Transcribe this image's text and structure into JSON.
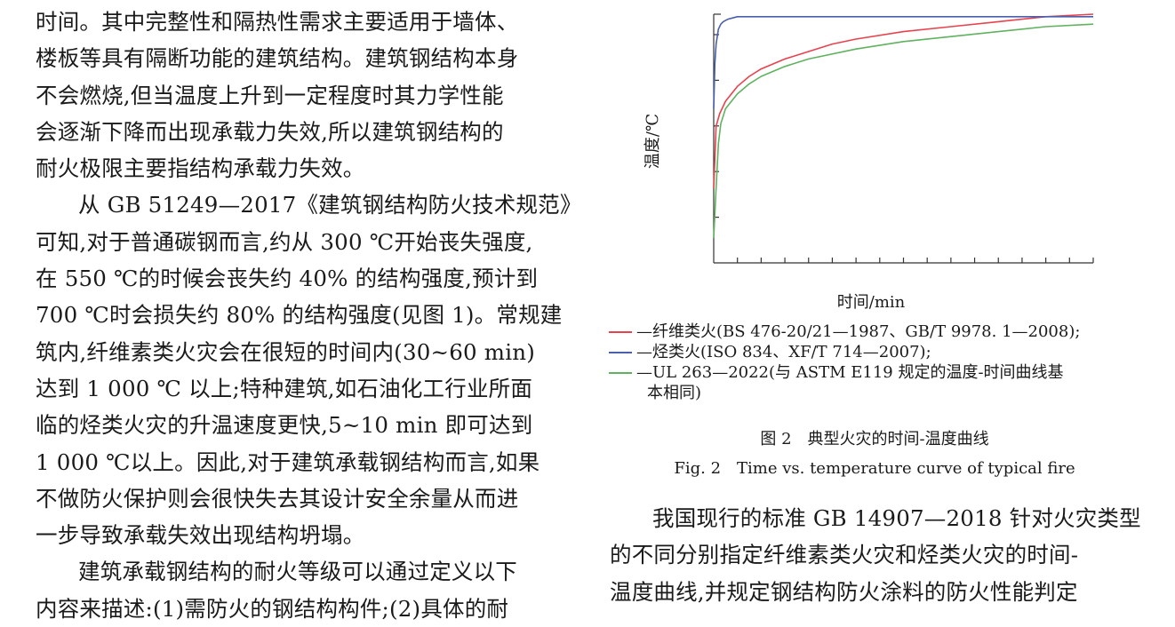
{
  "left_column": {
    "lines": [
      "时间。其中完整性和隔热性需求主要适用于墙体、",
      "楼板等具有隔断功能的建筑结构。建筑钢结构本身",
      "不会燃烧,但当温度上升到一定程度时其力学性能",
      "会逐渐下降而出现承载力失效,所以建筑钢结构的",
      "耐火极限主要指结构承载力失效。",
      "从 GB 51249—2017《建筑钢结构防火技术规范》",
      "可知,对于普通碳钢而言,约从 300 ℃开始丧失强度,",
      "在 550 ℃的时候会丧失约 40% 的结构强度,预计到",
      "700 ℃时会损失约 80% 的结构强度(见图 1)。常规建",
      "筑内,纤维素类火灾会在很短的时间内(30~60 min)",
      "达到 1 000 ℃ 以上;特种建筑,如石油化工行业所面",
      "临的烃类火灾的升温速度更快,5~10 min 即可达到",
      "1 000 ℃以上。因此,对于建筑承载钢结构而言,如果",
      "不做防火保护则会很快失去其设计安全余量从而进",
      "一步导致承载失效出现结构坍塌。",
      "建筑承载钢结构的耐火等级可以通过定义以下",
      "内容来描述:(1)需防火的钢结构构件;(2)具体的耐"
    ]
  },
  "figure": {
    "legend": [
      {
        "text": "—纤维类火(BS 476-20/21—1987、GB/T 9978. 1—2008);",
        "color": "#e8424e"
      },
      {
        "text": "—烃类火(ISO 834、XF/T 714—2007);",
        "color": "#4a5fae"
      },
      {
        "text": "—UL 263—2022(与 ASTM E119 规定的温度-时间曲线基",
        "text2": "本相同)",
        "color": "#5fb35f"
      }
    ],
    "caption_cn": "图 2　典型火灾的时间-温度曲线",
    "caption_en": "Fig. 2　Time vs. temperature curve of typical fire"
  },
  "chart_data": {
    "type": "line",
    "xlabel": "时间/min",
    "ylabel": "温度/℃",
    "grid": false,
    "legend_placement": "below",
    "x_ticks": 16,
    "y_ticks": 5,
    "note": "relative curve shapes; axes carry no numeric tick labels",
    "series": [
      {
        "name": "纤维类火",
        "color": "#e8424e",
        "x": [
          0,
          0.1,
          0.25,
          0.5,
          1,
          1.5,
          2,
          3,
          4,
          5,
          6,
          8,
          10,
          12,
          14,
          16
        ],
        "y": [
          0.3,
          0.55,
          0.6,
          0.65,
          0.71,
          0.75,
          0.78,
          0.82,
          0.85,
          0.88,
          0.9,
          0.93,
          0.95,
          0.97,
          0.99,
          1.0
        ]
      },
      {
        "name": "烃类火",
        "color": "#4a5fae",
        "x": [
          0,
          0.05,
          0.1,
          0.2,
          0.3,
          0.4,
          0.6,
          0.8,
          1,
          1.5,
          2,
          4,
          8,
          12,
          16
        ],
        "y": [
          0.62,
          0.8,
          0.88,
          0.94,
          0.96,
          0.97,
          0.98,
          0.985,
          0.99,
          0.99,
          0.99,
          0.99,
          0.99,
          0.99,
          0.99
        ]
      },
      {
        "name": "UL 263",
        "color": "#5fb35f",
        "x": [
          0,
          0.1,
          0.2,
          0.3,
          0.5,
          1,
          1.5,
          2,
          3,
          4,
          6,
          8,
          10,
          12,
          14,
          16
        ],
        "y": [
          0.1,
          0.3,
          0.48,
          0.56,
          0.62,
          0.68,
          0.72,
          0.75,
          0.79,
          0.82,
          0.86,
          0.89,
          0.91,
          0.93,
          0.95,
          0.96
        ]
      }
    ]
  },
  "right_column": {
    "lines": [
      "我国现行的标准 GB 14907—2018 针对火灾类型",
      "的不同分别指定纤维素类火灾和烃类火灾的时间-",
      "温度曲线,并规定钢结构防火涂料的防火性能判定"
    ]
  }
}
